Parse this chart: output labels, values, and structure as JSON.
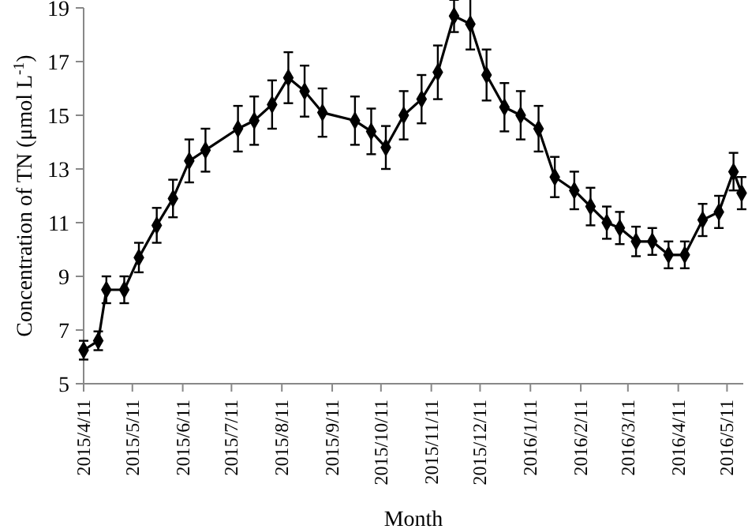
{
  "chart_data": {
    "type": "line",
    "xlabel": "Month",
    "ylabel": "Concentration of TN (μmol L$^{-1}$)",
    "x": [
      "2015-04-11",
      "2015-04-20",
      "2015-04-25",
      "2015-05-06",
      "2015-05-15",
      "2015-05-26",
      "2015-06-05",
      "2015-06-15",
      "2015-06-25",
      "2015-07-15",
      "2015-07-25",
      "2015-08-05",
      "2015-08-15",
      "2015-08-25",
      "2015-09-05",
      "2015-09-25",
      "2015-10-05",
      "2015-10-14",
      "2015-10-25",
      "2015-11-05",
      "2015-11-15",
      "2015-11-25",
      "2015-12-05",
      "2015-12-15",
      "2015-12-26",
      "2016-01-05",
      "2016-01-16",
      "2016-01-26",
      "2016-02-07",
      "2016-02-17",
      "2016-02-27",
      "2016-03-06",
      "2016-03-16",
      "2016-03-26",
      "2016-04-05",
      "2016-04-15",
      "2016-04-26",
      "2016-05-06",
      "2016-05-15",
      "2016-05-20"
    ],
    "series": [
      {
        "color": "#000000",
        "values": [
          6.25,
          6.6,
          8.5,
          8.5,
          9.7,
          10.9,
          11.9,
          13.3,
          13.7,
          14.5,
          14.8,
          15.4,
          16.4,
          15.9,
          15.1,
          14.8,
          14.4,
          13.8,
          15.0,
          15.6,
          16.6,
          18.7,
          18.4,
          16.5,
          15.3,
          15.0,
          14.5,
          12.7,
          12.2,
          11.6,
          11.0,
          10.8,
          10.3,
          10.3,
          9.8,
          9.8,
          11.1,
          11.4,
          12.9,
          12.1
        ],
        "errors": [
          0.35,
          0.35,
          0.5,
          0.5,
          0.55,
          0.65,
          0.7,
          0.8,
          0.8,
          0.85,
          0.9,
          0.9,
          0.95,
          0.95,
          0.9,
          0.9,
          0.85,
          0.8,
          0.9,
          0.9,
          1.0,
          0.6,
          0.95,
          0.95,
          0.9,
          0.9,
          0.85,
          0.75,
          0.7,
          0.7,
          0.6,
          0.6,
          0.55,
          0.5,
          0.5,
          0.5,
          0.6,
          0.6,
          0.7,
          0.6
        ]
      }
    ],
    "xlim": [
      "2015-04-11",
      "2016-05-21"
    ],
    "xticks": [
      {
        "value": "2015-04-11",
        "label": "2015/4/11"
      },
      {
        "value": "2015-05-11",
        "label": "2015/5/11"
      },
      {
        "value": "2015-06-11",
        "label": "2015/6/11"
      },
      {
        "value": "2015-07-11",
        "label": "2015/7/11"
      },
      {
        "value": "2015-08-11",
        "label": "2015/8/11"
      },
      {
        "value": "2015-09-11",
        "label": "2015/9/11"
      },
      {
        "value": "2015-10-11",
        "label": "2015/10/11"
      },
      {
        "value": "2015-11-11",
        "label": "2015/11/11"
      },
      {
        "value": "2015-12-11",
        "label": "2015/12/11"
      },
      {
        "value": "2016-01-11",
        "label": "2016/1/11"
      },
      {
        "value": "2016-02-11",
        "label": "2016/2/11"
      },
      {
        "value": "2016-03-11",
        "label": "2016/3/11"
      },
      {
        "value": "2016-04-11",
        "label": "2016/4/11"
      },
      {
        "value": "2016-05-11",
        "label": "2016/5/11"
      }
    ],
    "ylim": [
      5,
      19
    ],
    "yticks": [
      5,
      7,
      9,
      11,
      13,
      15,
      17,
      19
    ],
    "grid": false,
    "marker": "diamond",
    "line_style": "solid"
  }
}
